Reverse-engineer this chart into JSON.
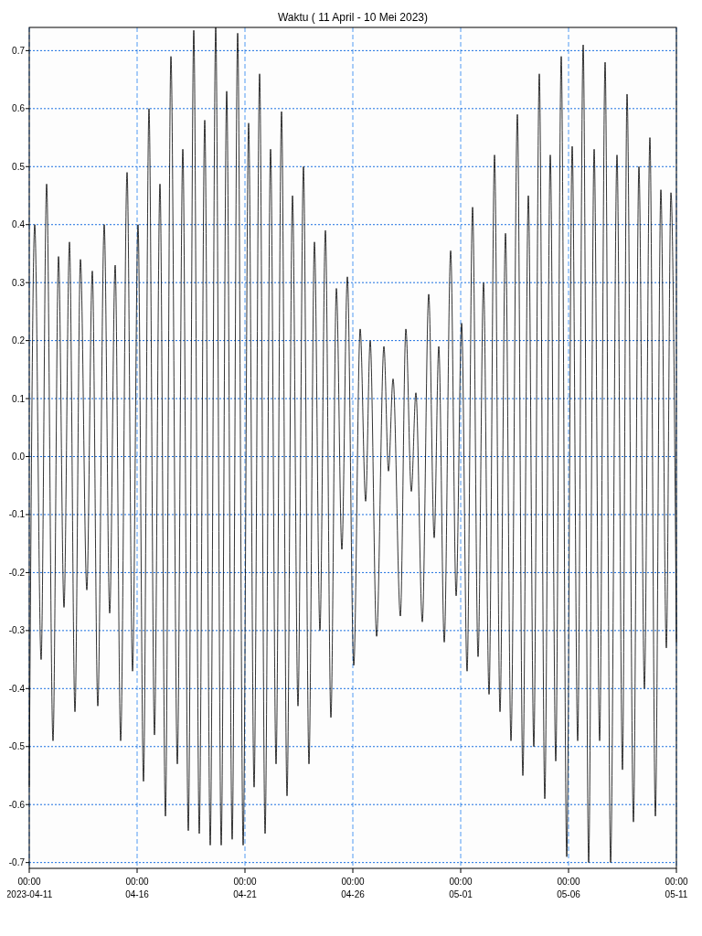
{
  "chart_data": {
    "type": "line",
    "title": "Waktu ( 11 April - 10 Mei 2023)",
    "xlim": [
      "2023-04-11",
      "2023-05-11"
    ],
    "xticks": [
      {
        "value": "2023-04-11",
        "label": "00:00\n2023-04-11"
      },
      {
        "value": "2023-04-16",
        "label": "00:00\n04-16"
      },
      {
        "value": "2023-04-21",
        "label": "00:00\n04-21"
      },
      {
        "value": "2023-04-26",
        "label": "00:00\n04-26"
      },
      {
        "value": "2023-05-01",
        "label": "00:00\n05-01"
      },
      {
        "value": "2023-05-06",
        "label": "00:00\n05-06"
      },
      {
        "value": "2023-05-11",
        "label": "00:00\n05-11"
      }
    ],
    "ylim": [
      -0.71,
      0.74
    ],
    "yticks": [
      -0.7,
      -0.6,
      -0.5,
      -0.4,
      -0.3,
      -0.2,
      -0.1,
      {
        "value": 0,
        "label": "0.0"
      },
      0.1,
      0.2,
      0.3,
      0.4,
      0.5,
      0.6,
      0.7
    ],
    "grid": true,
    "marker": "none",
    "line_style": "solid",
    "series": [
      {
        "color": "#000000",
        "x": [
          "2023-04-11T00:00",
          "2023-04-11T06:06",
          "2023-04-11T13:13",
          "2023-04-11T19:19",
          "2023-04-12T02:26",
          "2023-04-12T08:33",
          "2023-04-12T14:39",
          "2023-04-12T20:45",
          "2023-04-13T02:51",
          "2023-04-13T08:57",
          "2023-04-13T16:04",
          "2023-04-13T22:10",
          "2023-04-14T04:16",
          "2023-04-14T11:24",
          "2023-04-14T17:30",
          "2023-04-14T23:36",
          "2023-04-15T05:42",
          "2023-04-15T12:49",
          "2023-04-15T18:55",
          "2023-04-16T01:01",
          "2023-04-16T07:07",
          "2023-04-16T13:13",
          "2023-04-16T19:19",
          "2023-04-17T01:26",
          "2023-04-17T07:32",
          "2023-04-17T13:38",
          "2023-04-17T20:45",
          "2023-04-18T02:51",
          "2023-04-18T08:57",
          "2023-04-18T15:03",
          "2023-04-18T21:09",
          "2023-04-19T03:15",
          "2023-04-19T09:22",
          "2023-04-19T15:28",
          "2023-04-19T21:34",
          "2023-04-20T03:40",
          "2023-04-20T09:46",
          "2023-04-20T15:52",
          "2023-04-20T21:58",
          "2023-04-21T04:04",
          "2023-04-21T10:10",
          "2023-04-21T16:17",
          "2023-04-21T22:23",
          "2023-04-22T04:29",
          "2023-04-22T10:35",
          "2023-04-22T16:41",
          "2023-04-22T22:47",
          "2023-04-23T04:53",
          "2023-04-23T10:59",
          "2023-04-23T17:06",
          "2023-04-23T23:12",
          "2023-04-24T05:18",
          "2023-04-24T11:24",
          "2023-04-24T17:30",
          "2023-04-24T23:36",
          "2023-04-25T05:42",
          "2023-04-25T11:48",
          "2023-04-25T17:55",
          "2023-04-26T01:02",
          "2023-04-26T08:10",
          "2023-04-26T14:16",
          "2023-04-26T19:20",
          "2023-04-27T02:28",
          "2023-04-27T10:36",
          "2023-04-27T15:41",
          "2023-04-27T20:46",
          "2023-04-28T04:54",
          "2023-04-28T11:00",
          "2023-04-28T17:06",
          "2023-04-28T22:11",
          "2023-04-29T05:19",
          "2023-04-29T12:26",
          "2023-04-29T18:32",
          "2023-04-29T23:37",
          "2023-04-30T05:43",
          "2023-04-30T12:50",
          "2023-04-30T18:56",
          "2023-05-01T01:02",
          "2023-05-01T07:08",
          "2023-05-01T13:14",
          "2023-05-01T19:20",
          "2023-05-02T01:26",
          "2023-05-02T07:33",
          "2023-05-02T13:39",
          "2023-05-02T19:45",
          "2023-05-03T01:51",
          "2023-05-03T07:57",
          "2023-05-03T15:04",
          "2023-05-03T21:10",
          "2023-05-04T03:16",
          "2023-05-04T09:22",
          "2023-05-04T15:28",
          "2023-05-04T21:34",
          "2023-05-05T03:40",
          "2023-05-05T09:46",
          "2023-05-05T15:52",
          "2023-05-05T21:58",
          "2023-05-06T04:04",
          "2023-05-06T10:10",
          "2023-05-06T16:17",
          "2023-05-06T22:23",
          "2023-05-07T04:29",
          "2023-05-07T10:35",
          "2023-05-07T16:41",
          "2023-05-07T22:47",
          "2023-05-08T05:54",
          "2023-05-08T12:00",
          "2023-05-08T17:05",
          "2023-05-09T00:13",
          "2023-05-09T06:19",
          "2023-05-09T12:25",
          "2023-05-09T18:31",
          "2023-05-10T00:37",
          "2023-05-10T06:43",
          "2023-05-10T12:49",
          "2023-05-10T17:55",
          "2023-05-11T00:00"
        ],
        "values": [
          -0.57,
          0.4,
          -0.35,
          0.47,
          -0.49,
          0.345,
          -0.26,
          0.37,
          -0.44,
          0.34,
          -0.23,
          0.32,
          -0.43,
          0.4,
          -0.27,
          0.33,
          -0.49,
          0.49,
          -0.37,
          0.4,
          -0.56,
          0.6,
          -0.48,
          0.47,
          -0.62,
          0.69,
          -0.53,
          0.53,
          -0.645,
          0.735,
          -0.65,
          0.58,
          -0.67,
          0.74,
          -0.67,
          0.63,
          -0.66,
          0.73,
          -0.67,
          0.575,
          -0.57,
          0.66,
          -0.65,
          0.53,
          -0.53,
          0.595,
          -0.585,
          0.45,
          -0.43,
          0.5,
          -0.53,
          0.37,
          -0.3,
          0.39,
          -0.45,
          0.29,
          -0.16,
          0.31,
          -0.36,
          0.22,
          -0.077,
          0.2,
          -0.31,
          0.19,
          -0.025,
          0.134,
          -0.275,
          0.22,
          -0.06,
          0.11,
          -0.285,
          0.28,
          -0.14,
          0.19,
          -0.32,
          0.355,
          -0.24,
          0.23,
          -0.37,
          0.43,
          -0.345,
          0.3,
          -0.41,
          0.52,
          -0.44,
          0.385,
          -0.49,
          0.59,
          -0.55,
          0.45,
          -0.5,
          0.66,
          -0.59,
          0.52,
          -0.525,
          0.69,
          -0.69,
          0.535,
          -0.49,
          0.71,
          -0.7,
          0.53,
          -0.49,
          0.68,
          -0.7,
          0.52,
          -0.54,
          0.625,
          -0.63,
          0.5,
          -0.4,
          0.55,
          -0.62,
          0.46,
          -0.33,
          0.455,
          -0.32
        ]
      }
    ]
  }
}
